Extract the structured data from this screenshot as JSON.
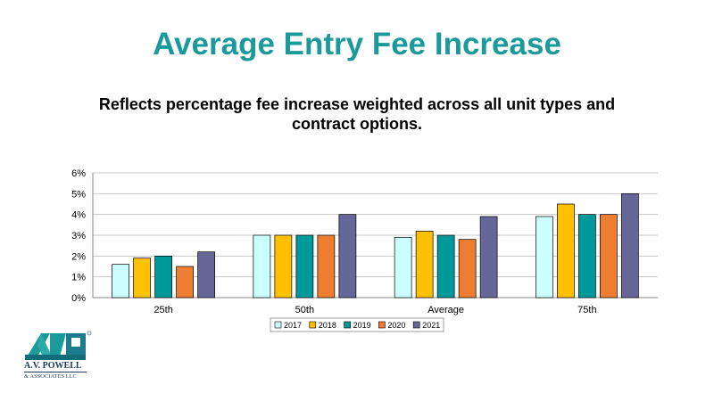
{
  "slide": {
    "title": "Average Entry Fee Increase",
    "subtitle": "Reflects percentage fee increase weighted across all unit types and contract options.",
    "title_color": "#1a9a9a"
  },
  "logo": {
    "line1": "A.V. POWELL",
    "line2": "& ASSOCIATES LLC",
    "mark": "AVP"
  },
  "chart_data": {
    "type": "bar",
    "categories": [
      "25th",
      "50th",
      "Average",
      "75th"
    ],
    "series": [
      {
        "name": "2017",
        "color": "#ccffff",
        "values": [
          1.6,
          3.0,
          2.9,
          3.9
        ]
      },
      {
        "name": "2018",
        "color": "#ffc000",
        "values": [
          1.9,
          3.0,
          3.2,
          4.5
        ]
      },
      {
        "name": "2019",
        "color": "#009999",
        "values": [
          2.0,
          3.0,
          3.0,
          4.0
        ]
      },
      {
        "name": "2020",
        "color": "#ed7d31",
        "values": [
          1.5,
          3.0,
          2.8,
          4.0
        ]
      },
      {
        "name": "2021",
        "color": "#666699",
        "values": [
          2.2,
          4.0,
          3.9,
          5.0
        ]
      }
    ],
    "ylim": [
      0,
      6
    ],
    "yticks": [
      "0%",
      "1%",
      "2%",
      "3%",
      "4%",
      "5%",
      "6%"
    ],
    "grid": true,
    "legend_position": "bottom"
  }
}
